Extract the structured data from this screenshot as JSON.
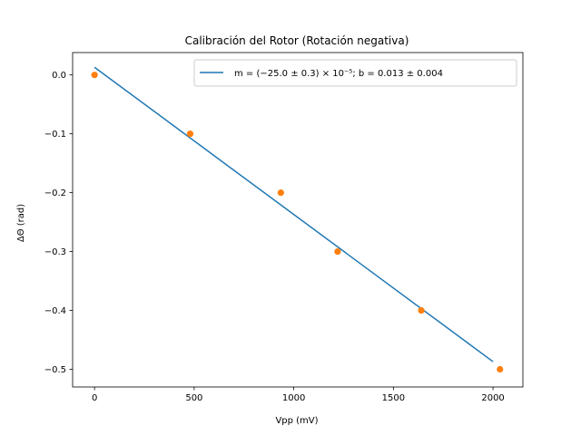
{
  "chart_data": {
    "type": "scatter",
    "title": "Calibración del Rotor (Rotación negativa)",
    "xlabel": "Vpp (mV)",
    "ylabel": "ΔΘ (rad)",
    "xlim": [
      -110,
      2150
    ],
    "ylim": [
      -0.53,
      0.038
    ],
    "xticks": [
      0,
      500,
      1000,
      1500,
      2000
    ],
    "yticks": [
      0.0,
      -0.1,
      -0.2,
      -0.3,
      -0.4,
      -0.5
    ],
    "xtick_labels": [
      "0",
      "500",
      "1000",
      "1500",
      "2000"
    ],
    "ytick_labels": [
      "0.0",
      "−0.1",
      "−0.2",
      "−0.3",
      "−0.4",
      "−0.5"
    ],
    "grid": false,
    "legend_position": "top-right",
    "series": [
      {
        "kind": "line",
        "name": "m = (−25.0 ± 0.3) × 10⁻⁵; b = 0.013 ± 0.004",
        "color": "#1f77b4",
        "x": [
          0,
          2000
        ],
        "y": [
          0.013,
          -0.487
        ]
      },
      {
        "kind": "points",
        "color": "#ff7f0e",
        "x": [
          0,
          480,
          935,
          1220,
          1640,
          2035
        ],
        "y": [
          0.0,
          -0.1,
          -0.2,
          -0.3,
          -0.4,
          -0.5
        ]
      }
    ]
  }
}
